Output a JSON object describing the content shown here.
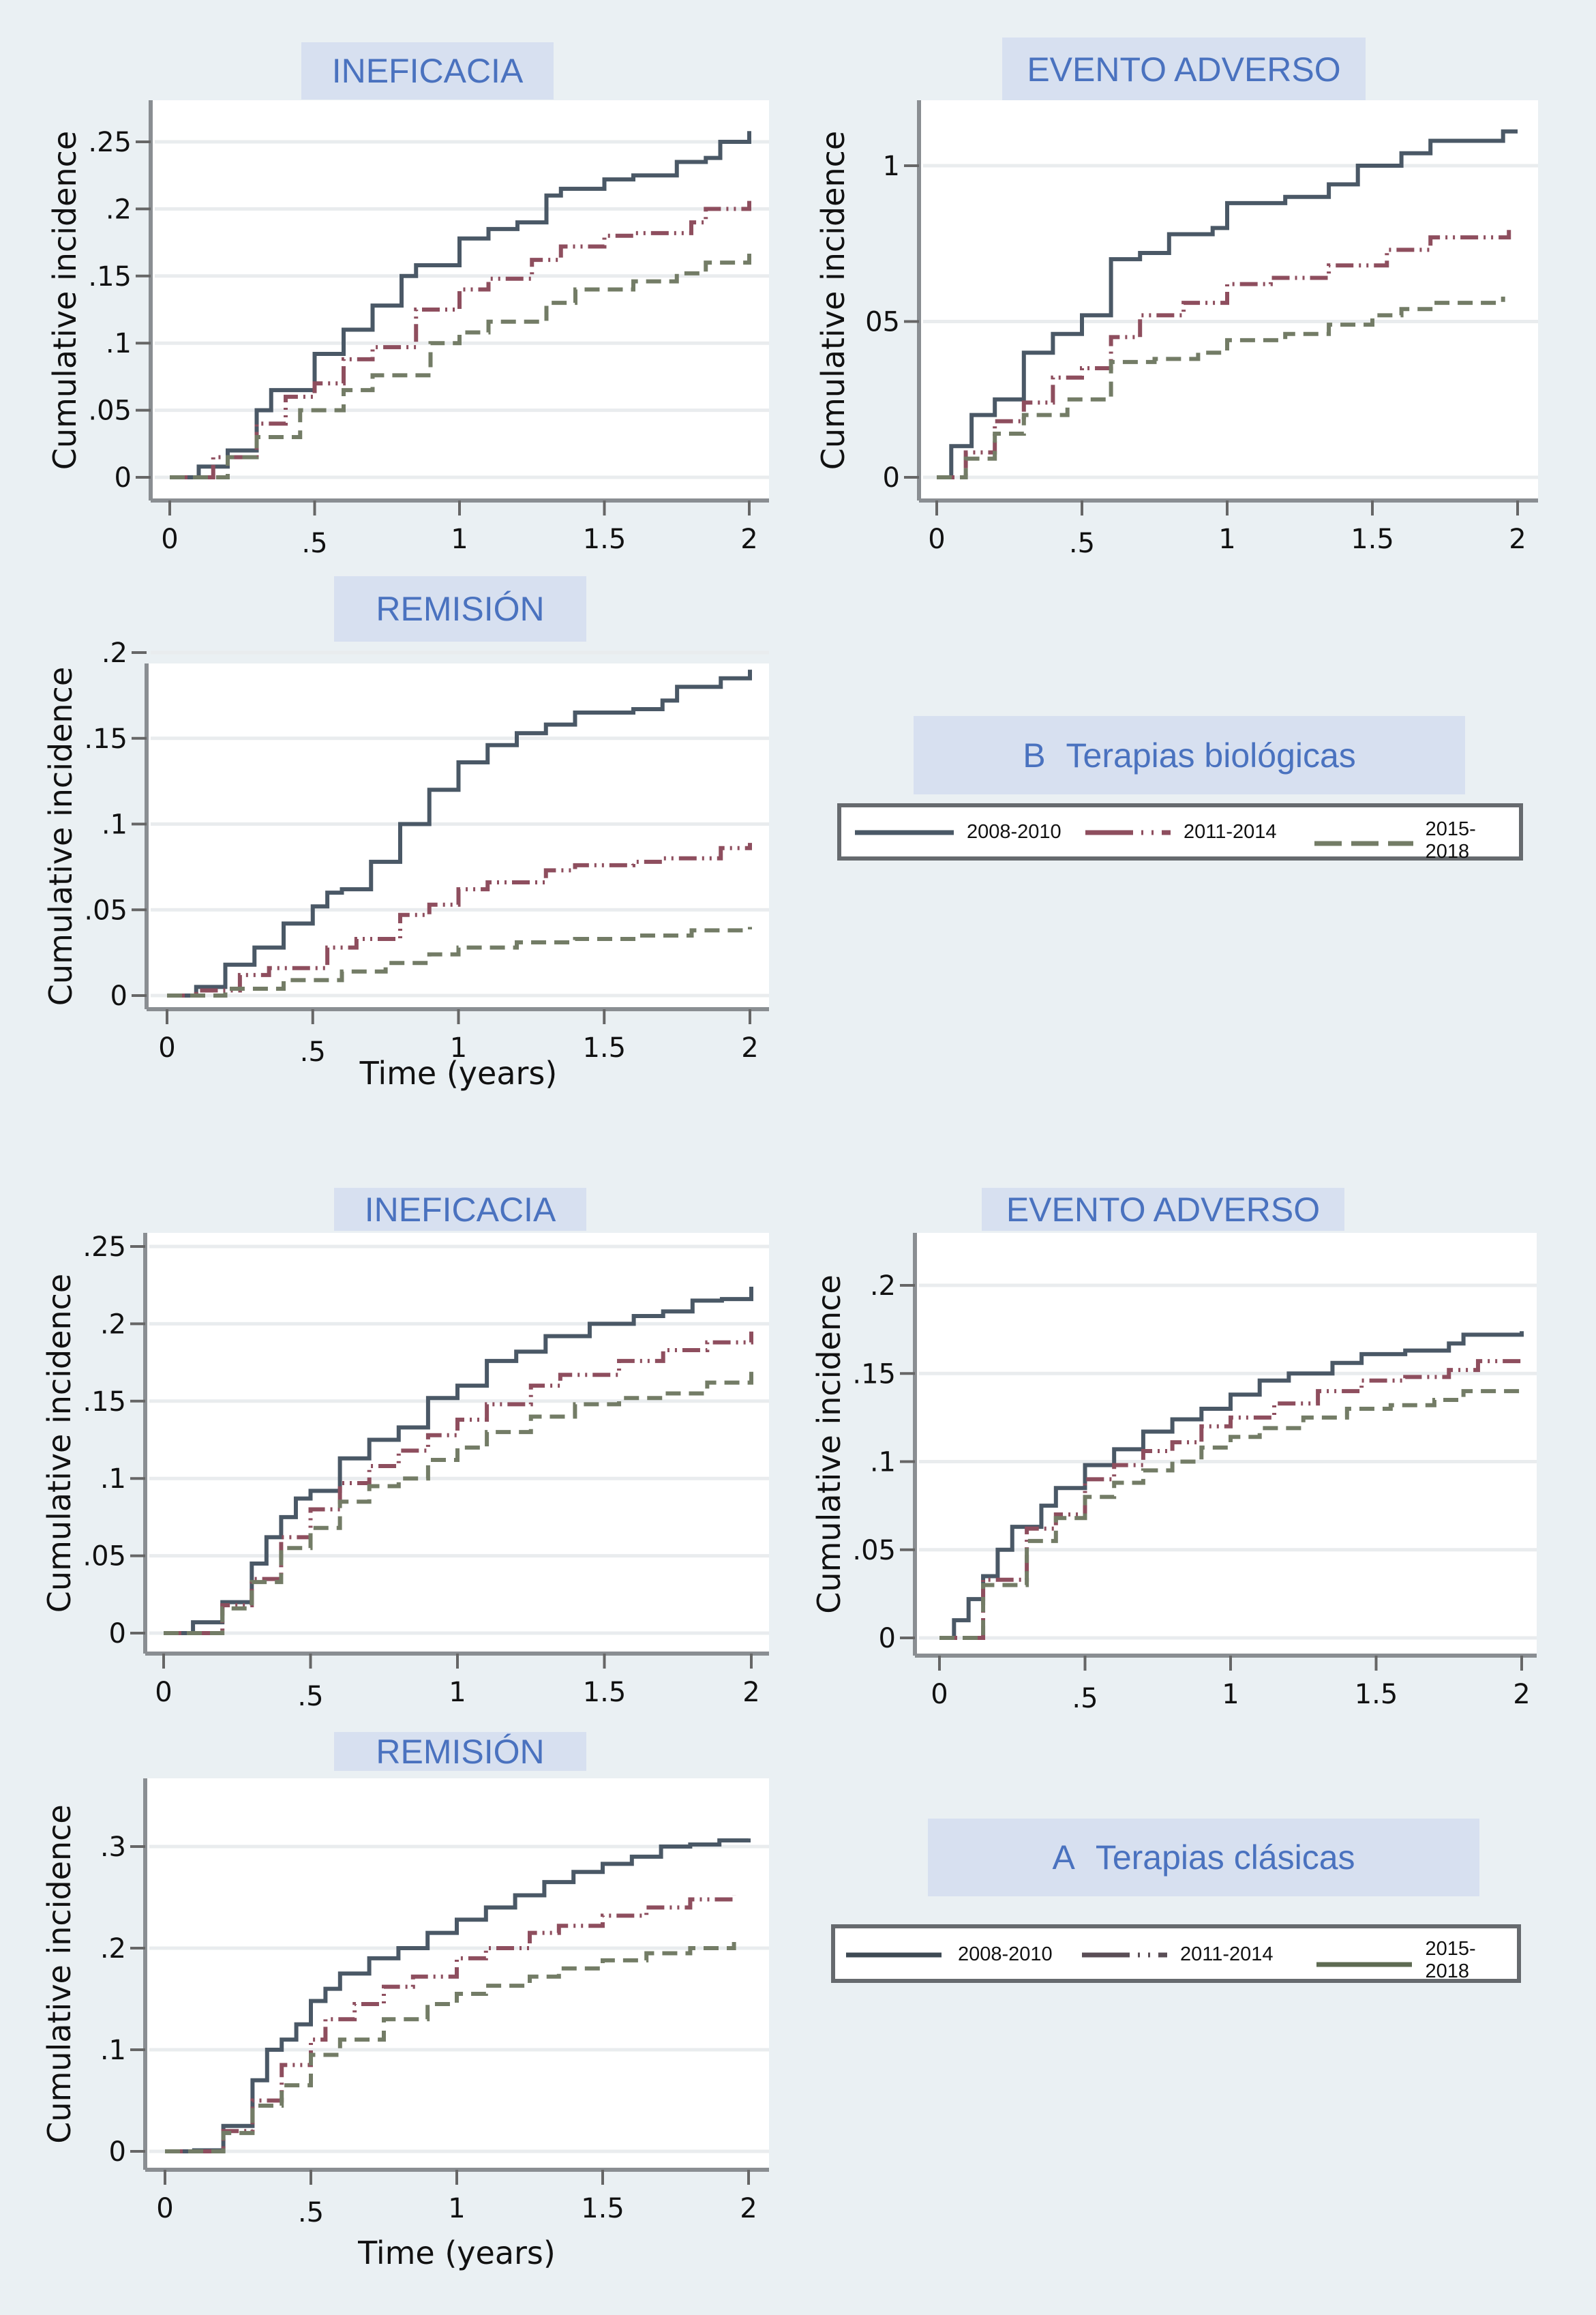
{
  "figure": {
    "sections": [
      {
        "letter": "B",
        "title": "Terapias biológicas"
      },
      {
        "letter": "A",
        "title": "Terapias clásicas"
      }
    ],
    "legend": [
      {
        "label": "2008-2010",
        "style": "solid"
      },
      {
        "label": "2011-2014",
        "style": "dashdot"
      },
      {
        "label": "2015-2018",
        "style": "dash"
      }
    ],
    "colors": {
      "page_bg": "#EAF0F3",
      "title_bg": "#D7E0F0",
      "title_text": "#4A72BF",
      "series": [
        "#4A5866",
        "#8E4E5E",
        "#737C66"
      ],
      "axis": "#8A8E92",
      "grid": "#E9ECEE"
    }
  },
  "chart_data": [
    {
      "id": "bio-ineficacia",
      "group": "B Terapias biológicas",
      "type": "line",
      "title": "INEFICACIA",
      "xlabel": "",
      "ylabel": "Cumulative incidence",
      "xlim": [
        0,
        2
      ],
      "ylim": [
        0,
        0.25
      ],
      "xticks": [
        0,
        0.5,
        1,
        1.5,
        2
      ],
      "xtick_labels": [
        "0",
        ".5",
        "1",
        "1.5",
        "2"
      ],
      "yticks": [
        0,
        0.05,
        0.1,
        0.15,
        0.2,
        0.25
      ],
      "ytick_labels": [
        "0",
        ".05",
        ".1",
        ".15",
        ".2",
        ".25"
      ],
      "grid": true,
      "series": [
        {
          "name": "2008-2010",
          "x": [
            0,
            0.1,
            0.2,
            0.3,
            0.35,
            0.5,
            0.6,
            0.7,
            0.8,
            0.85,
            1.0,
            1.1,
            1.2,
            1.3,
            1.35,
            1.5,
            1.6,
            1.75,
            1.85,
            1.9,
            2.0
          ],
          "y": [
            0,
            0.008,
            0.02,
            0.05,
            0.065,
            0.092,
            0.11,
            0.128,
            0.15,
            0.158,
            0.178,
            0.185,
            0.19,
            0.21,
            0.215,
            0.222,
            0.225,
            0.235,
            0.238,
            0.25,
            0.258
          ]
        },
        {
          "name": "2011-2014",
          "x": [
            0,
            0.15,
            0.3,
            0.4,
            0.5,
            0.6,
            0.7,
            0.85,
            1.0,
            1.1,
            1.25,
            1.35,
            1.5,
            1.6,
            1.8,
            1.85,
            2.0
          ],
          "y": [
            0,
            0.015,
            0.04,
            0.06,
            0.07,
            0.088,
            0.097,
            0.125,
            0.14,
            0.148,
            0.162,
            0.172,
            0.18,
            0.182,
            0.19,
            0.2,
            0.206
          ]
        },
        {
          "name": "2015-2018",
          "x": [
            0,
            0.2,
            0.3,
            0.45,
            0.6,
            0.7,
            0.9,
            1.0,
            1.1,
            1.3,
            1.4,
            1.6,
            1.75,
            1.85,
            2.0
          ],
          "y": [
            0,
            0.015,
            0.03,
            0.05,
            0.065,
            0.076,
            0.1,
            0.108,
            0.116,
            0.13,
            0.14,
            0.146,
            0.152,
            0.16,
            0.168
          ]
        }
      ]
    },
    {
      "id": "bio-evento",
      "group": "B Terapias biológicas",
      "type": "line",
      "title": "EVENTO ADVERSO",
      "xlabel": "",
      "ylabel": "Cumulative incidence",
      "xlim": [
        0,
        2
      ],
      "ylim": [
        0,
        0.1
      ],
      "xticks": [
        0,
        0.5,
        1,
        1.5,
        2
      ],
      "xtick_labels": [
        "0",
        ".5",
        "1",
        "1.5",
        "2"
      ],
      "yticks": [
        0,
        0.05,
        0.1
      ],
      "ytick_labels": [
        "0",
        "05",
        "1"
      ],
      "grid": true,
      "series": [
        {
          "name": "2008-2010",
          "x": [
            0,
            0.05,
            0.12,
            0.2,
            0.3,
            0.4,
            0.5,
            0.6,
            0.7,
            0.8,
            0.95,
            1.0,
            1.2,
            1.35,
            1.45,
            1.6,
            1.7,
            1.9,
            1.95,
            2.0
          ],
          "y": [
            0,
            0.01,
            0.02,
            0.025,
            0.04,
            0.046,
            0.052,
            0.07,
            0.072,
            0.078,
            0.08,
            0.088,
            0.09,
            0.094,
            0.1,
            0.104,
            0.108,
            0.108,
            0.111,
            0.111
          ]
        },
        {
          "name": "2011-2014",
          "x": [
            0,
            0.1,
            0.2,
            0.3,
            0.4,
            0.5,
            0.6,
            0.7,
            0.85,
            1.0,
            1.15,
            1.35,
            1.55,
            1.7,
            1.9,
            1.97
          ],
          "y": [
            0,
            0.008,
            0.018,
            0.024,
            0.032,
            0.035,
            0.045,
            0.052,
            0.056,
            0.062,
            0.064,
            0.068,
            0.073,
            0.077,
            0.077,
            0.081
          ]
        },
        {
          "name": "2015-2018",
          "x": [
            0,
            0.1,
            0.2,
            0.3,
            0.45,
            0.6,
            0.75,
            0.9,
            1.0,
            1.2,
            1.35,
            1.5,
            1.6,
            1.7,
            1.9,
            1.95
          ],
          "y": [
            0,
            0.006,
            0.014,
            0.02,
            0.025,
            0.037,
            0.038,
            0.04,
            0.044,
            0.046,
            0.049,
            0.052,
            0.054,
            0.056,
            0.056,
            0.058
          ]
        }
      ]
    },
    {
      "id": "bio-remision",
      "group": "B Terapias biológicas",
      "type": "line",
      "title": "REMISIÓN",
      "xlabel": "Time (years)",
      "ylabel": "Cumulative incidence",
      "xlim": [
        0,
        2
      ],
      "ylim": [
        0,
        0.2
      ],
      "xticks": [
        0,
        0.5,
        1,
        1.5,
        2
      ],
      "xtick_labels": [
        "0",
        ".5",
        "1",
        "1.5",
        "2"
      ],
      "yticks": [
        0,
        0.05,
        0.1,
        0.15,
        0.2
      ],
      "ytick_labels": [
        "0",
        ".05",
        ".1",
        ".15",
        ".2"
      ],
      "grid": true,
      "series": [
        {
          "name": "2008-2010",
          "x": [
            0,
            0.1,
            0.2,
            0.3,
            0.4,
            0.5,
            0.55,
            0.6,
            0.7,
            0.8,
            0.9,
            1.0,
            1.1,
            1.2,
            1.3,
            1.4,
            1.6,
            1.7,
            1.75,
            1.9,
            2.0
          ],
          "y": [
            0,
            0.005,
            0.018,
            0.028,
            0.042,
            0.052,
            0.06,
            0.062,
            0.078,
            0.1,
            0.12,
            0.136,
            0.146,
            0.153,
            0.158,
            0.165,
            0.167,
            0.172,
            0.18,
            0.185,
            0.19
          ]
        },
        {
          "name": "2011-2014",
          "x": [
            0,
            0.1,
            0.25,
            0.35,
            0.55,
            0.65,
            0.8,
            0.9,
            1.0,
            1.1,
            1.3,
            1.4,
            1.6,
            1.7,
            1.9,
            2.0
          ],
          "y": [
            0,
            0.003,
            0.012,
            0.016,
            0.028,
            0.033,
            0.047,
            0.053,
            0.062,
            0.066,
            0.073,
            0.076,
            0.078,
            0.08,
            0.086,
            0.089
          ]
        },
        {
          "name": "2015-2018",
          "x": [
            0,
            0.2,
            0.4,
            0.6,
            0.75,
            0.9,
            1.0,
            1.2,
            1.4,
            1.6,
            1.8,
            2.0
          ],
          "y": [
            0,
            0.004,
            0.009,
            0.014,
            0.019,
            0.024,
            0.028,
            0.031,
            0.033,
            0.035,
            0.038,
            0.04
          ]
        }
      ]
    },
    {
      "id": "clas-ineficacia",
      "group": "A Terapias clásicas",
      "type": "line",
      "title": "INEFICACIA",
      "xlabel": "",
      "ylabel": "Cumulative incidence",
      "xlim": [
        0,
        2
      ],
      "ylim": [
        0,
        0.25
      ],
      "xticks": [
        0,
        0.5,
        1,
        1.5,
        2
      ],
      "xtick_labels": [
        "0",
        ".5",
        "1",
        "1.5",
        "2"
      ],
      "yticks": [
        0,
        0.05,
        0.1,
        0.15,
        0.2,
        0.25
      ],
      "ytick_labels": [
        "0",
        ".05",
        ".1",
        ".15",
        ".2",
        ".25"
      ],
      "grid": true,
      "series": [
        {
          "name": "2008-2010",
          "x": [
            0,
            0.1,
            0.2,
            0.3,
            0.35,
            0.4,
            0.45,
            0.5,
            0.6,
            0.7,
            0.8,
            0.9,
            1.0,
            1.1,
            1.2,
            1.3,
            1.45,
            1.6,
            1.7,
            1.8,
            1.9,
            2.0
          ],
          "y": [
            0,
            0.007,
            0.02,
            0.045,
            0.062,
            0.075,
            0.087,
            0.092,
            0.113,
            0.125,
            0.133,
            0.152,
            0.16,
            0.176,
            0.182,
            0.192,
            0.2,
            0.205,
            0.208,
            0.215,
            0.216,
            0.224
          ]
        },
        {
          "name": "2011-2014",
          "x": [
            0,
            0.2,
            0.3,
            0.4,
            0.5,
            0.6,
            0.7,
            0.8,
            0.9,
            1.0,
            1.1,
            1.25,
            1.35,
            1.55,
            1.7,
            1.85,
            2.0
          ],
          "y": [
            0,
            0.018,
            0.035,
            0.062,
            0.08,
            0.097,
            0.108,
            0.118,
            0.128,
            0.138,
            0.148,
            0.16,
            0.167,
            0.176,
            0.183,
            0.188,
            0.195
          ]
        },
        {
          "name": "2015-2018",
          "x": [
            0,
            0.2,
            0.3,
            0.4,
            0.5,
            0.6,
            0.7,
            0.8,
            0.9,
            1.0,
            1.1,
            1.25,
            1.4,
            1.55,
            1.7,
            1.85,
            2.0
          ],
          "y": [
            0,
            0.016,
            0.033,
            0.055,
            0.068,
            0.085,
            0.095,
            0.1,
            0.112,
            0.12,
            0.13,
            0.14,
            0.148,
            0.152,
            0.155,
            0.162,
            0.169
          ]
        }
      ]
    },
    {
      "id": "clas-evento",
      "group": "A Terapias clásicas",
      "type": "line",
      "title": "EVENTO ADVERSO",
      "xlabel": "",
      "ylabel": "Cumulative incidence",
      "xlim": [
        0,
        2
      ],
      "ylim": [
        0,
        0.2
      ],
      "xticks": [
        0,
        0.5,
        1,
        1.5,
        2
      ],
      "xtick_labels": [
        "0",
        ".5",
        "1",
        "1.5",
        "2"
      ],
      "yticks": [
        0,
        0.05,
        0.1,
        0.15,
        0.2
      ],
      "ytick_labels": [
        "0",
        ".05",
        ".1",
        ".15",
        ".2"
      ],
      "grid": true,
      "series": [
        {
          "name": "2008-2010",
          "x": [
            0,
            0.05,
            0.1,
            0.15,
            0.2,
            0.25,
            0.35,
            0.4,
            0.5,
            0.6,
            0.7,
            0.8,
            0.9,
            1.0,
            1.1,
            1.2,
            1.35,
            1.45,
            1.6,
            1.75,
            1.8,
            2.0
          ],
          "y": [
            0,
            0.01,
            0.022,
            0.035,
            0.05,
            0.063,
            0.075,
            0.085,
            0.098,
            0.107,
            0.117,
            0.124,
            0.13,
            0.138,
            0.146,
            0.15,
            0.156,
            0.161,
            0.163,
            0.167,
            0.172,
            0.174
          ]
        },
        {
          "name": "2011-2014",
          "x": [
            0,
            0.15,
            0.3,
            0.4,
            0.5,
            0.6,
            0.7,
            0.8,
            0.9,
            1.0,
            1.15,
            1.3,
            1.45,
            1.6,
            1.75,
            1.85,
            2.0
          ],
          "y": [
            0,
            0.033,
            0.062,
            0.07,
            0.09,
            0.098,
            0.106,
            0.111,
            0.12,
            0.125,
            0.133,
            0.14,
            0.146,
            0.148,
            0.152,
            0.157,
            0.158
          ]
        },
        {
          "name": "2015-2018",
          "x": [
            0,
            0.15,
            0.3,
            0.4,
            0.5,
            0.6,
            0.7,
            0.8,
            0.9,
            1.0,
            1.1,
            1.25,
            1.4,
            1.55,
            1.7,
            1.8,
            2.0
          ],
          "y": [
            0,
            0.03,
            0.055,
            0.068,
            0.08,
            0.088,
            0.095,
            0.1,
            0.108,
            0.114,
            0.119,
            0.125,
            0.13,
            0.132,
            0.135,
            0.14,
            0.141
          ]
        }
      ]
    },
    {
      "id": "clas-remision",
      "group": "A Terapias clásicas",
      "type": "line",
      "title": "REMISIÓN",
      "xlabel": "Time (years)",
      "ylabel": "Cumulative incidence",
      "xlim": [
        0,
        2
      ],
      "ylim": [
        0,
        0.3
      ],
      "xticks": [
        0,
        0.5,
        1,
        1.5,
        2
      ],
      "xtick_labels": [
        "0",
        ".5",
        "1",
        "1.5",
        "2"
      ],
      "yticks": [
        0,
        0.1,
        0.2,
        0.3
      ],
      "ytick_labels": [
        "0",
        ".1",
        ".2",
        ".3"
      ],
      "grid": true,
      "series": [
        {
          "name": "2008-2010",
          "x": [
            0,
            0.1,
            0.2,
            0.3,
            0.35,
            0.4,
            0.45,
            0.5,
            0.55,
            0.6,
            0.7,
            0.8,
            0.9,
            1.0,
            1.1,
            1.2,
            1.3,
            1.4,
            1.5,
            1.6,
            1.7,
            1.8,
            1.9,
            2.0
          ],
          "y": [
            0,
            0.001,
            0.025,
            0.07,
            0.1,
            0.11,
            0.125,
            0.148,
            0.16,
            0.175,
            0.19,
            0.2,
            0.215,
            0.228,
            0.24,
            0.252,
            0.265,
            0.275,
            0.283,
            0.29,
            0.3,
            0.302,
            0.306,
            0.308
          ]
        },
        {
          "name": "2011-2014",
          "x": [
            0,
            0.2,
            0.3,
            0.4,
            0.5,
            0.55,
            0.65,
            0.75,
            0.85,
            1.0,
            1.1,
            1.25,
            1.35,
            1.5,
            1.65,
            1.8,
            1.95
          ],
          "y": [
            0,
            0.02,
            0.05,
            0.085,
            0.11,
            0.13,
            0.145,
            0.162,
            0.172,
            0.19,
            0.2,
            0.215,
            0.222,
            0.232,
            0.24,
            0.248,
            0.252
          ]
        },
        {
          "name": "2015-2018",
          "x": [
            0,
            0.2,
            0.3,
            0.4,
            0.5,
            0.6,
            0.75,
            0.9,
            1.0,
            1.1,
            1.25,
            1.35,
            1.5,
            1.65,
            1.8,
            1.95
          ],
          "y": [
            0,
            0.018,
            0.045,
            0.065,
            0.095,
            0.11,
            0.13,
            0.145,
            0.155,
            0.163,
            0.172,
            0.18,
            0.188,
            0.195,
            0.2,
            0.206
          ]
        }
      ]
    }
  ]
}
